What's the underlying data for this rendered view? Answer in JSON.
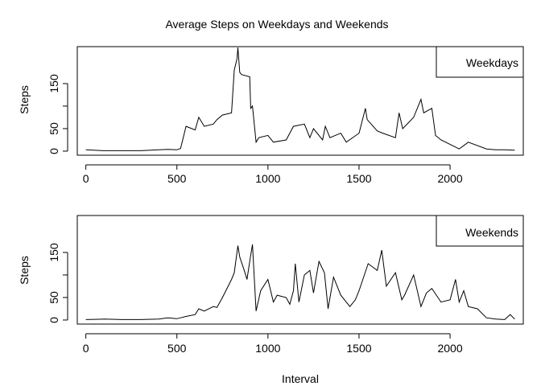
{
  "chart_data": [
    {
      "type": "line",
      "title": "Average Steps on Weekdays and Weekends",
      "xlabel": "",
      "ylabel": "Steps",
      "legend": "top-right",
      "grid": false,
      "xlim": [
        -47,
        2402
      ],
      "ylim": [
        -9,
        232
      ],
      "xticks": [
        0,
        500,
        1000,
        1500,
        2000
      ],
      "yticks": [
        0,
        50,
        100,
        150
      ],
      "ytick_labels": [
        "0",
        "50",
        "",
        "150"
      ],
      "series": [
        {
          "name": "Weekdays",
          "x": [
            0,
            100,
            200,
            300,
            400,
            450,
            500,
            520,
            550,
            600,
            620,
            650,
            700,
            720,
            750,
            800,
            815,
            830,
            835,
            845,
            855,
            900,
            905,
            915,
            935,
            950,
            1000,
            1030,
            1100,
            1140,
            1200,
            1230,
            1250,
            1300,
            1315,
            1340,
            1400,
            1430,
            1500,
            1535,
            1545,
            1600,
            1630,
            1700,
            1720,
            1740,
            1800,
            1840,
            1855,
            1900,
            1920,
            1950,
            2000,
            2050,
            2100,
            2200,
            2250,
            2300,
            2355
          ],
          "y": [
            3,
            1,
            1,
            1,
            3,
            4,
            3,
            6,
            55,
            47,
            75,
            55,
            60,
            70,
            80,
            85,
            180,
            205,
            230,
            175,
            170,
            165,
            95,
            100,
            20,
            30,
            35,
            20,
            25,
            55,
            60,
            30,
            50,
            25,
            55,
            30,
            40,
            20,
            40,
            95,
            70,
            45,
            40,
            30,
            85,
            50,
            75,
            115,
            85,
            95,
            35,
            25,
            15,
            5,
            20,
            5,
            3,
            3,
            2
          ]
        },
        {
          "name": "Weekends",
          "x": [
            0,
            100,
            200,
            300,
            400,
            450,
            500,
            520,
            550,
            600,
            620,
            650,
            700,
            720,
            750,
            800,
            815,
            835,
            845,
            870,
            885,
            900,
            915,
            935,
            960,
            1000,
            1030,
            1050,
            1100,
            1120,
            1140,
            1150,
            1170,
            1200,
            1230,
            1250,
            1280,
            1310,
            1330,
            1360,
            1400,
            1450,
            1480,
            1500,
            1550,
            1600,
            1625,
            1650,
            1700,
            1735,
            1750,
            1800,
            1840,
            1870,
            1900,
            1950,
            2000,
            2030,
            2050,
            2075,
            2100,
            2150,
            2200,
            2250,
            2300,
            2330,
            2355
          ],
          "y": [
            1,
            2,
            1,
            1,
            2,
            5,
            3,
            5,
            8,
            12,
            25,
            20,
            30,
            28,
            50,
            90,
            105,
            165,
            140,
            110,
            90,
            130,
            168,
            20,
            65,
            90,
            40,
            55,
            50,
            35,
            65,
            125,
            40,
            100,
            110,
            60,
            130,
            105,
            25,
            95,
            55,
            30,
            45,
            65,
            125,
            110,
            155,
            75,
            105,
            45,
            55,
            100,
            30,
            60,
            70,
            40,
            45,
            90,
            40,
            65,
            30,
            25,
            5,
            2,
            1,
            12,
            2
          ]
        }
      ]
    }
  ],
  "shared": {
    "xlabel": "Interval"
  }
}
